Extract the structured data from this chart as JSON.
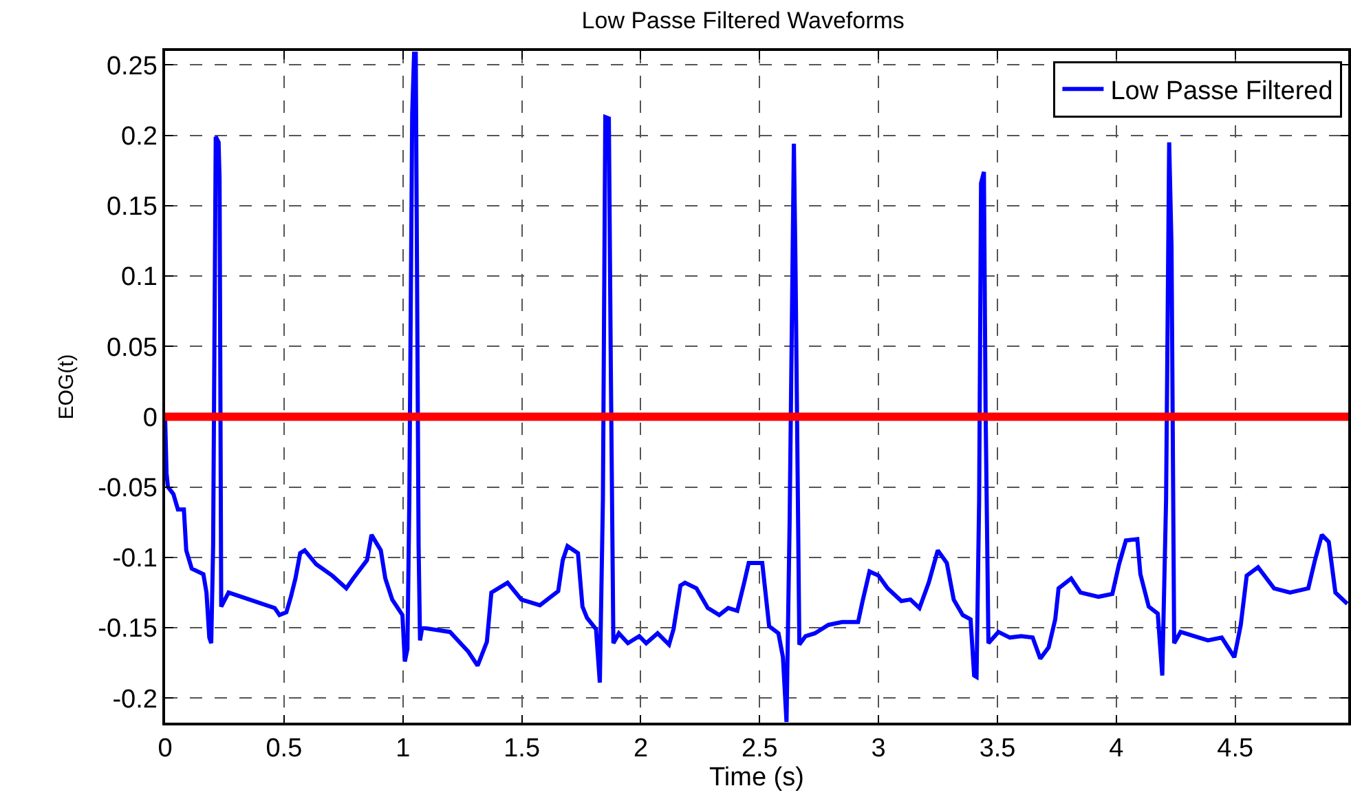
{
  "chart_data": {
    "type": "line",
    "title": "Low Passe Filtered Waveforms",
    "xlabel": "Time (s)",
    "ylabel": "EOG(t)",
    "xlim": [
      0,
      4.975
    ],
    "xticks": [
      0,
      0.5,
      1,
      1.5,
      2,
      2.5,
      3,
      3.5,
      4,
      4.5
    ],
    "ylim": [
      -0.2175,
      0.26
    ],
    "yticks": [
      -0.2,
      -0.15,
      -0.1,
      -0.05,
      0,
      0.05,
      0.1,
      0.15,
      0.2,
      0.25
    ],
    "grid": true,
    "legend": "top right",
    "line_style": "solid",
    "marker": "none",
    "ref_lines": [
      {
        "axis": "y",
        "value": 0,
        "color": "#ff0000"
      }
    ],
    "series": [
      {
        "name": "Low Passe Filtered",
        "color": "#0000ff",
        "x": [
          0,
          0.006,
          0.012,
          0.035,
          0.054,
          0.079,
          0.089,
          0.112,
          0.161,
          0.174,
          0.186,
          0.194,
          0.202,
          0.213,
          0.225,
          0.229,
          0.236,
          0.267,
          0.355,
          0.461,
          0.481,
          0.51,
          0.529,
          0.548,
          0.568,
          0.587,
          0.636,
          0.703,
          0.762,
          0.791,
          0.849,
          0.868,
          0.907,
          0.926,
          0.955,
          0.998,
          1.008,
          1.019,
          1.027,
          1.039,
          1.047,
          1.054,
          1.066,
          1.072,
          1.081,
          1.198,
          1.275,
          1.314,
          1.353,
          1.372,
          1.44,
          1.498,
          1.576,
          1.653,
          1.672,
          1.692,
          1.736,
          1.755,
          1.774,
          1.812,
          1.828,
          1.841,
          1.851,
          1.866,
          1.874,
          1.885,
          1.908,
          1.946,
          1.994,
          2.023,
          2.071,
          2.119,
          2.138,
          2.167,
          2.186,
          2.234,
          2.282,
          2.33,
          2.368,
          2.406,
          2.435,
          2.454,
          2.511,
          2.54,
          2.579,
          2.598,
          2.613,
          2.626,
          2.644,
          2.651,
          2.667,
          2.693,
          2.732,
          2.789,
          2.847,
          2.914,
          2.933,
          2.962,
          3.0,
          3.038,
          3.096,
          3.134,
          3.172,
          3.211,
          3.249,
          3.287,
          3.316,
          3.354,
          3.387,
          3.402,
          3.412,
          3.423,
          3.431,
          3.443,
          3.45,
          3.462,
          3.504,
          3.552,
          3.6,
          3.648,
          3.68,
          3.715,
          3.743,
          3.757,
          3.81,
          3.849,
          3.925,
          3.983,
          4.011,
          4.04,
          4.088,
          4.101,
          4.136,
          4.174,
          4.193,
          4.209,
          4.222,
          4.232,
          4.243,
          4.27,
          4.328,
          4.385,
          4.443,
          4.496,
          4.523,
          4.548,
          4.596,
          4.663,
          4.73,
          4.807,
          4.835,
          4.864,
          4.893,
          4.921,
          4.971
        ],
        "values": [
          0,
          -0.04,
          -0.05,
          -0.055,
          -0.066,
          -0.066,
          -0.095,
          -0.108,
          -0.112,
          -0.125,
          -0.157,
          -0.161,
          -0.092,
          0.199,
          0.195,
          0.169,
          -0.135,
          -0.125,
          -0.13,
          -0.136,
          -0.141,
          -0.139,
          -0.128,
          -0.115,
          -0.097,
          -0.095,
          -0.105,
          -0.113,
          -0.122,
          -0.115,
          -0.102,
          -0.084,
          -0.095,
          -0.115,
          -0.13,
          -0.141,
          -0.174,
          -0.165,
          -0.059,
          0.215,
          0.258,
          0.258,
          -0.092,
          -0.159,
          -0.15,
          -0.153,
          -0.167,
          -0.177,
          -0.16,
          -0.125,
          -0.118,
          -0.13,
          -0.134,
          -0.124,
          -0.102,
          -0.092,
          -0.097,
          -0.135,
          -0.143,
          -0.151,
          -0.189,
          -0.059,
          0.213,
          0.212,
          0.039,
          -0.161,
          -0.154,
          -0.161,
          -0.156,
          -0.161,
          -0.154,
          -0.162,
          -0.151,
          -0.12,
          -0.118,
          -0.122,
          -0.136,
          -0.141,
          -0.136,
          -0.138,
          -0.118,
          -0.104,
          -0.104,
          -0.149,
          -0.154,
          -0.171,
          -0.217,
          -0.076,
          0.194,
          0.104,
          -0.162,
          -0.156,
          -0.154,
          -0.148,
          -0.146,
          -0.146,
          -0.131,
          -0.11,
          -0.113,
          -0.122,
          -0.131,
          -0.13,
          -0.136,
          -0.118,
          -0.095,
          -0.104,
          -0.13,
          -0.141,
          -0.144,
          -0.184,
          -0.185,
          -0.059,
          0.166,
          0.174,
          0.006,
          -0.161,
          -0.153,
          -0.157,
          -0.156,
          -0.157,
          -0.172,
          -0.164,
          -0.144,
          -0.122,
          -0.115,
          -0.125,
          -0.128,
          -0.126,
          -0.105,
          -0.088,
          -0.087,
          -0.112,
          -0.135,
          -0.14,
          -0.184,
          -0.059,
          0.195,
          0.12,
          -0.161,
          -0.153,
          -0.156,
          -0.159,
          -0.157,
          -0.171,
          -0.148,
          -0.113,
          -0.107,
          -0.122,
          -0.125,
          -0.122,
          -0.102,
          -0.084,
          -0.089,
          -0.125,
          -0.133
        ]
      }
    ]
  }
}
